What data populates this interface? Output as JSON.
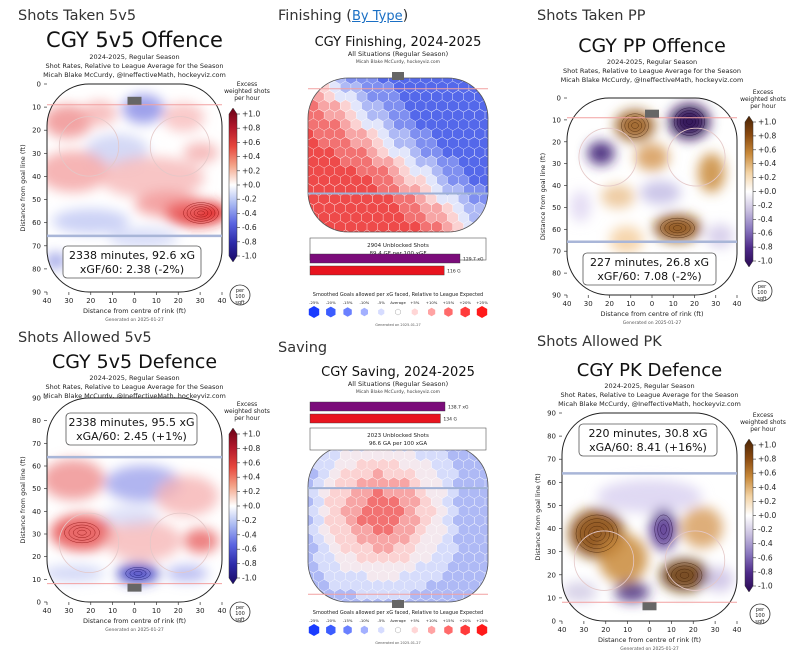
{
  "sections": {
    "s1": "Shots Taken 5v5",
    "s2_text": "Finishing",
    "s2_link": "By Type",
    "s3": "Shots Taken PP",
    "s4": "Shots Allowed 5v5",
    "s5": "Saving",
    "s6": "Shots Allowed PK"
  },
  "common": {
    "season": "2024-2025, Regular Season",
    "rates": "Shot Rates, Relative to League Average for the Season",
    "credit": "Micah Blake McCurdy, @IneffectiveMath, hockeyviz.com",
    "credit_short": "Micah Blake McCurdy, hockeyviz.com",
    "generated": "Generated on 2025-01-27",
    "xlabel": "Distance from centre of rink (ft)",
    "ylabel": "Distance from goal line (ft)",
    "cbar_title_1": "Excess",
    "cbar_title_2": "weighted shots",
    "cbar_title_3": "per hour",
    "unit_1": "per",
    "unit_2": "100",
    "unit_3": "sqft",
    "all_situations": "All Situations (Regular Season)",
    "smoothed_goals": "Smoothed Goals allowed per xG faced, Relative to League Expected"
  },
  "palettes": {
    "red_blue": [
      "#6a0016",
      "#b2182b",
      "#e7473d",
      "#f4a58a",
      "#ffffff",
      "#a8b8f2",
      "#5a64e0",
      "#2c2aa8",
      "#1b0a66"
    ],
    "orange_purple": [
      "#4a2406",
      "#8a4a10",
      "#c98a3a",
      "#f3d3a4",
      "#ffffff",
      "#c9c0e0",
      "#8a78bf",
      "#4e2a8a",
      "#2a0a52"
    ]
  },
  "chart_data": [
    {
      "type": "heatmap",
      "title": "CGY 5v5 Offence",
      "summary_1": "2338 minutes, 92.6 xG",
      "summary_2": "xGF/60: 2.38 (-2%)",
      "xticks": [
        "40",
        "30",
        "20",
        "10",
        "0",
        "10",
        "20",
        "30",
        "40"
      ],
      "yticks": [
        "0",
        "10",
        "20",
        "30",
        "40",
        "50",
        "60",
        "70",
        "80",
        "90"
      ],
      "colorbar_ticks": [
        "+1.0",
        "+0.8",
        "+0.6",
        "+0.4",
        "+0.2",
        "+0.0",
        "-0.2",
        "-0.4",
        "-0.6",
        "-0.8",
        "-1.0"
      ],
      "ylim": [
        0,
        90
      ],
      "xlim": [
        -42,
        42
      ]
    },
    {
      "type": "heatmap",
      "title": "CGY Finishing, 2024-2025",
      "box_1": "2904 Unblocked Shots",
      "box_2": "89.4 GF per 100 xGF",
      "bars": [
        {
          "label": "129.7 xG",
          "value": 129.7,
          "color": "#7b0c7a"
        },
        {
          "label": "116 G",
          "value": 116,
          "color": "#e8141f"
        }
      ],
      "legend_ticks": [
        "-25%",
        "-20%",
        "-15%",
        "-10%",
        "-5%",
        "Average",
        "+5%",
        "+10%",
        "+15%",
        "+20%",
        "+25%"
      ]
    },
    {
      "type": "heatmap",
      "title": "CGY PP Offence",
      "summary_1": "227 minutes, 26.8 xG",
      "summary_2": "xGF/60: 7.08 (-2%)",
      "xticks": [
        "40",
        "30",
        "20",
        "10",
        "0",
        "10",
        "20",
        "30",
        "40"
      ],
      "yticks": [
        "0",
        "10",
        "20",
        "30",
        "40",
        "50",
        "60",
        "70",
        "80",
        "90"
      ],
      "colorbar_ticks": [
        "+1.0",
        "+0.8",
        "+0.6",
        "+0.4",
        "+0.2",
        "+0.0",
        "-0.2",
        "-0.4",
        "-0.6",
        "-0.8",
        "-1.0"
      ],
      "ylim": [
        0,
        90
      ],
      "xlim": [
        -42,
        42
      ]
    },
    {
      "type": "heatmap",
      "title": "CGY 5v5 Defence",
      "summary_1": "2338 minutes, 95.5 xG",
      "summary_2": "xGA/60: 2.45 (+1%)",
      "xticks": [
        "40",
        "30",
        "20",
        "10",
        "0",
        "10",
        "20",
        "30",
        "40"
      ],
      "yticks": [
        "90",
        "80",
        "70",
        "60",
        "50",
        "40",
        "30",
        "20",
        "10",
        "0"
      ],
      "colorbar_ticks": [
        "+1.0",
        "+0.8",
        "+0.6",
        "+0.4",
        "+0.2",
        "+0.0",
        "-0.2",
        "-0.4",
        "-0.6",
        "-0.8",
        "-1.0"
      ],
      "ylim": [
        0,
        90
      ],
      "xlim": [
        -42,
        42
      ]
    },
    {
      "type": "heatmap",
      "title": "CGY Saving, 2024-2025",
      "box_1": "2023 Unblocked Shots",
      "box_2": "96.6 GA per 100 xGA",
      "bars": [
        {
          "label": "138.7 xG",
          "value": 138.7,
          "color": "#7b0c7a"
        },
        {
          "label": "134 G",
          "value": 134,
          "color": "#e8141f"
        }
      ],
      "legend_ticks": [
        "-25%",
        "-20%",
        "-15%",
        "-10%",
        "-5%",
        "Average",
        "+5%",
        "+10%",
        "+15%",
        "+20%",
        "+25%"
      ]
    },
    {
      "type": "heatmap",
      "title": "CGY PK Defence",
      "summary_1": "220 minutes, 30.8 xG",
      "summary_2": "xGA/60: 8.41 (+16%)",
      "xticks": [
        "40",
        "30",
        "20",
        "10",
        "0",
        "10",
        "20",
        "30",
        "40"
      ],
      "yticks": [
        "90",
        "80",
        "70",
        "60",
        "50",
        "40",
        "30",
        "20",
        "10",
        "0"
      ],
      "colorbar_ticks": [
        "+1.0",
        "+0.8",
        "+0.6",
        "+0.4",
        "+0.2",
        "+0.0",
        "-0.2",
        "-0.4",
        "-0.6",
        "-0.8",
        "-1.0"
      ],
      "ylim": [
        0,
        90
      ],
      "xlim": [
        -42,
        42
      ]
    }
  ]
}
